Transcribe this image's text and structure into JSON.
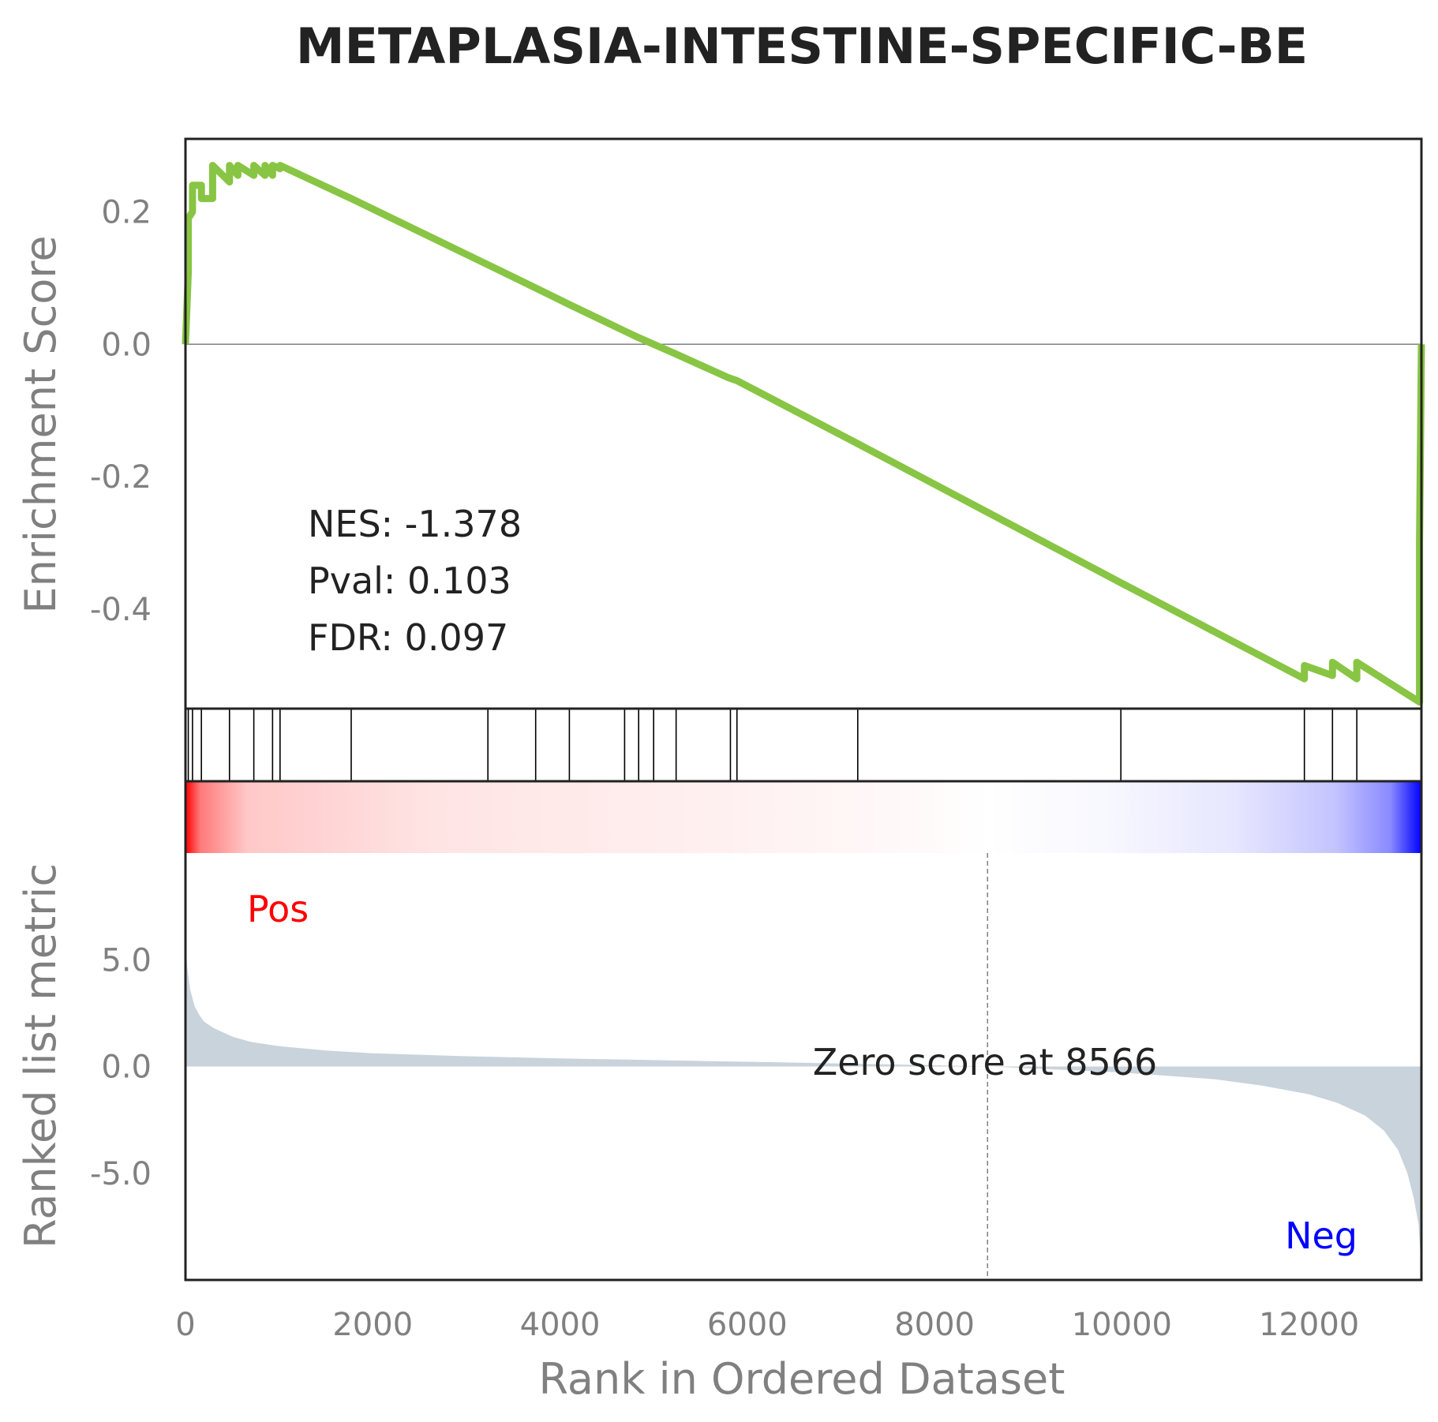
{
  "colors": {
    "es_line": "#88c544",
    "metric_fill": "#c9d3dc",
    "frame": "#222222",
    "pos_label": "#ff0000",
    "neg_label": "#0000ff"
  },
  "labels": {
    "pos": "Pos",
    "neg": "Neg",
    "zero_score": "Zero score at 8566"
  },
  "stats": {
    "nes": "NES: -1.378",
    "pval": "Pval: 0.103",
    "fdr": "FDR: 0.097"
  },
  "chart_data": {
    "type": "line",
    "title": "METAPLASIA-INTESTINE-SPECIFIC-BE",
    "xlabel": "Rank in Ordered Dataset",
    "xlim": [
      0,
      13200
    ],
    "xticks": [
      0,
      2000,
      4000,
      6000,
      8000,
      10000,
      12000
    ],
    "es_panel": {
      "ylabel": "Enrichment Score",
      "ylim": [
        -0.55,
        0.31
      ],
      "yticks": [
        0.2,
        0.0,
        -0.2,
        -0.4
      ],
      "ytick_labels": [
        "0.2",
        "0.0",
        "-0.2",
        "-0.4"
      ],
      "x": [
        0,
        30,
        30,
        75,
        75,
        170,
        170,
        290,
        290,
        470,
        470,
        560,
        560,
        730,
        730,
        850,
        850,
        930,
        930,
        1010,
        1010,
        1770,
        1770,
        3230,
        3230,
        3740,
        3740,
        4100,
        4100,
        4690,
        4690,
        4840,
        4840,
        5000,
        5000,
        5240,
        5240,
        5790,
        5790,
        5890,
        5890,
        7180,
        7180,
        9990,
        9990,
        11950,
        11950,
        12250,
        12250,
        12510,
        12510,
        13180,
        13180,
        13200
      ],
      "y": [
        0,
        0.11,
        0.19,
        0.2,
        0.24,
        0.24,
        0.22,
        0.22,
        0.27,
        0.245,
        0.27,
        0.255,
        0.27,
        0.255,
        0.27,
        0.255,
        0.27,
        0.255,
        0.27,
        0.265,
        0.27,
        0.22,
        0.22,
        0.12,
        0.12,
        0.085,
        0.085,
        0.06,
        0.06,
        0.02,
        0.02,
        0.01,
        0.01,
        0,
        0,
        -0.015,
        -0.015,
        -0.05,
        -0.05,
        -0.055,
        -0.055,
        -0.15,
        -0.15,
        -0.36,
        -0.36,
        -0.505,
        -0.485,
        -0.5,
        -0.48,
        -0.505,
        -0.48,
        -0.54,
        -0.3,
        0
      ]
    },
    "hits": [
      30,
      75,
      170,
      470,
      730,
      930,
      1010,
      1770,
      3230,
      3740,
      4100,
      4690,
      4840,
      5000,
      5240,
      5820,
      5890,
      7180,
      9990,
      11950,
      12250,
      12510
    ],
    "metric_panel": {
      "ylabel": "Ranked list metric",
      "ylim": [
        -10,
        10
      ],
      "yticks": [
        5.0,
        0.0,
        -5.0
      ],
      "ytick_labels": [
        "5.0",
        "0.0",
        "-5.0"
      ],
      "zero_cross": 8566,
      "x": [
        0,
        20,
        50,
        100,
        150,
        200,
        300,
        500,
        700,
        1000,
        1500,
        2000,
        3000,
        4000,
        5000,
        6000,
        7000,
        8000,
        8566,
        9000,
        10000,
        11000,
        11500,
        12000,
        12300,
        12600,
        12800,
        12950,
        13050,
        13120,
        13170,
        13200
      ],
      "values": [
        5.8,
        4.6,
        3.6,
        2.8,
        2.4,
        2.1,
        1.8,
        1.4,
        1.15,
        0.95,
        0.75,
        0.62,
        0.48,
        0.38,
        0.3,
        0.22,
        0.14,
        0.06,
        0,
        -0.08,
        -0.28,
        -0.6,
        -0.9,
        -1.3,
        -1.7,
        -2.3,
        -3.0,
        -3.9,
        -5.0,
        -6.2,
        -7.4,
        -9.6
      ]
    }
  }
}
